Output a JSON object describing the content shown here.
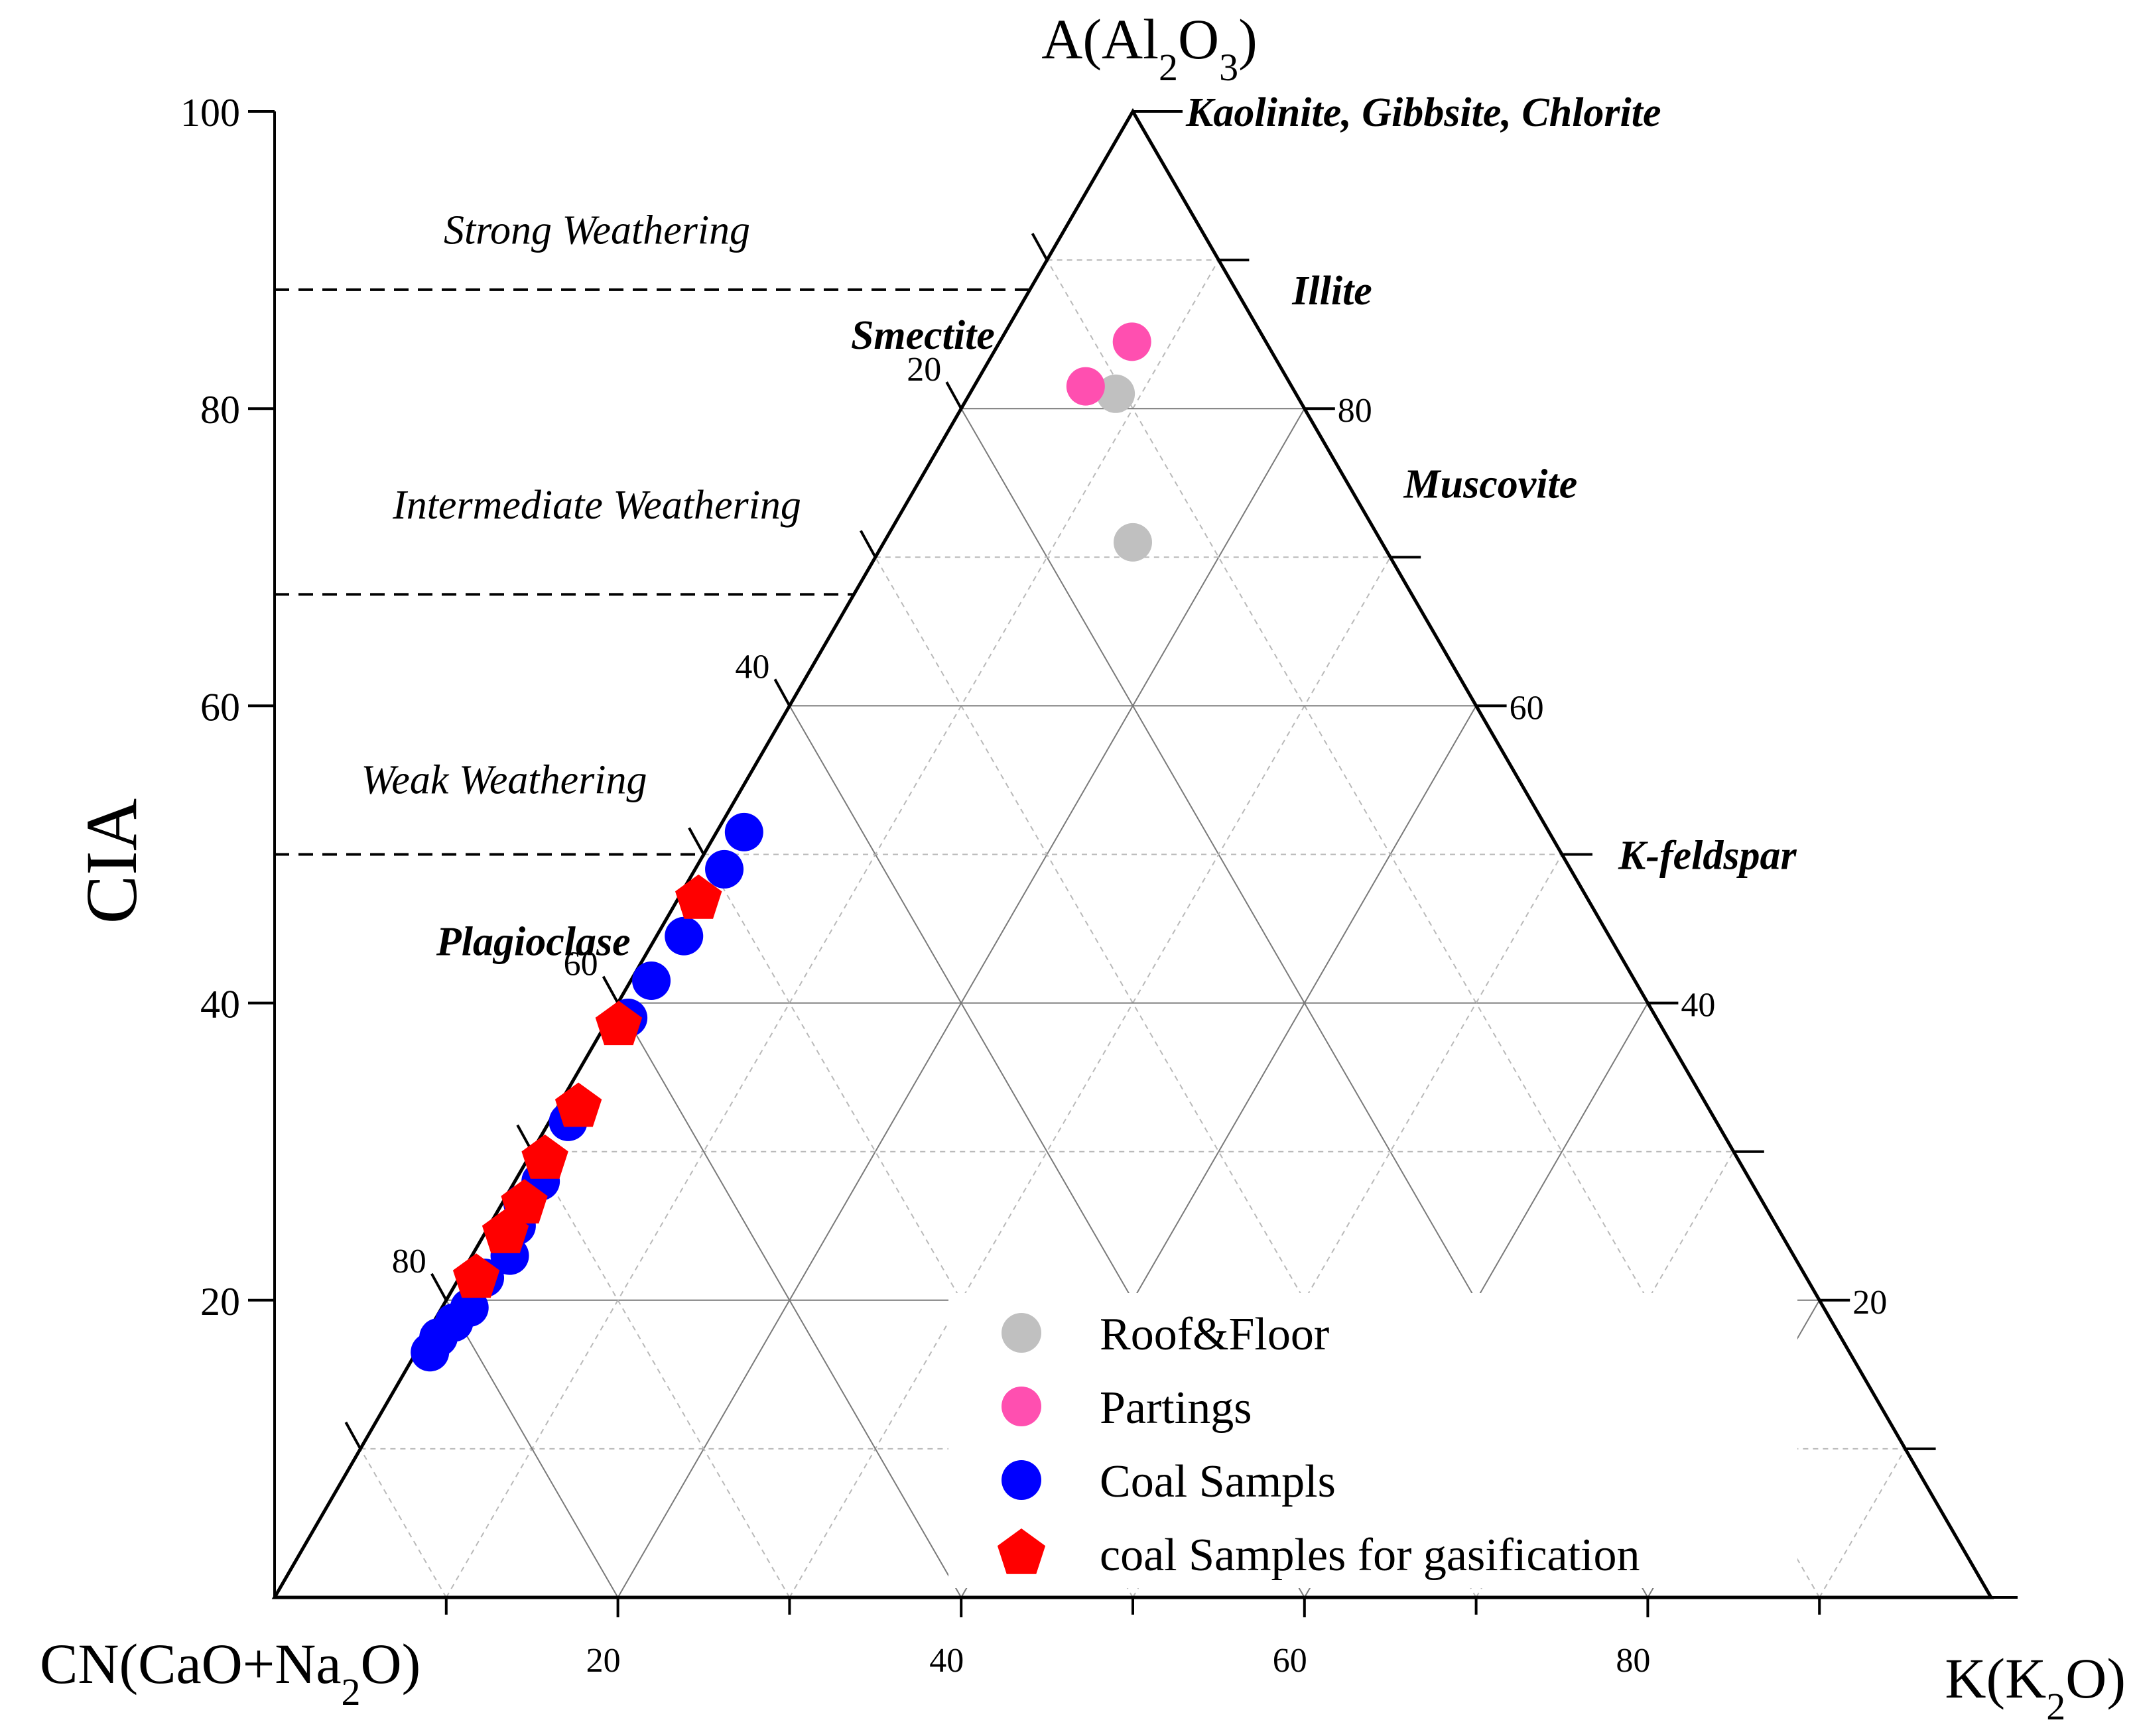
{
  "chart_data": {
    "type": "scatter",
    "subtype": "ternary A-CN-K diagram with CIA scale",
    "vertices": {
      "top": {
        "label": "A(Al",
        "sub1": "2",
        "mid": "O",
        "sub2": "3",
        "end": ")"
      },
      "left": {
        "label": "CN(CaO+Na",
        "sub1": "2",
        "end": "O)"
      },
      "right": {
        "label": "K(K",
        "sub1": "2",
        "end": "O)"
      }
    },
    "ylabel": "CIA",
    "ylim": [
      0,
      100
    ],
    "y_ticks": [
      20,
      40,
      60,
      80,
      100
    ],
    "bottom_ticks": [
      20,
      40,
      60,
      80
    ],
    "left_side_ticks": [
      20,
      40,
      60,
      80
    ],
    "right_side_ticks": [
      20,
      40,
      60,
      80
    ],
    "weathering_zones": [
      {
        "label": "Strong Weathering",
        "cia_text": 92
      },
      {
        "label": "Intermediate Weathering",
        "cia_text": 73.5
      },
      {
        "label": "Weak Weathering",
        "cia_text": 55
      }
    ],
    "zone_boundaries_cia": [
      88,
      67.5,
      50
    ],
    "minerals": [
      {
        "label": "Kaolinite, Gibbsite, Chlorite",
        "side": "right",
        "a": 100
      },
      {
        "label": "Illite",
        "side": "right",
        "a": 88
      },
      {
        "label": "Muscovite",
        "side": "right",
        "a": 75
      },
      {
        "label": "K-feldspar",
        "side": "right",
        "a": 50
      },
      {
        "label": "Smectite",
        "side": "left",
        "a": 85
      },
      {
        "label": "Plagioclase",
        "side": "left",
        "a": 47.5
      }
    ],
    "series": [
      {
        "name": "Roof&Floor",
        "marker": "circle",
        "color": "#c0c0c0",
        "points": [
          {
            "A": 81,
            "K": 8.5
          },
          {
            "A": 71,
            "K": 14.5
          }
        ]
      },
      {
        "name": "Partings",
        "marker": "circle",
        "color": "#ff4fb0",
        "points": [
          {
            "A": 84.5,
            "K": 7.7
          },
          {
            "A": 81.5,
            "K": 6.5
          }
        ]
      },
      {
        "name": "Coal Sampls",
        "marker": "circle",
        "color": "#0000ff",
        "points": [
          {
            "A": 51.5,
            "K": 1.6
          },
          {
            "A": 49,
            "K": 1.7
          },
          {
            "A": 44.5,
            "K": 1.6
          },
          {
            "A": 41.5,
            "K": 1.2
          },
          {
            "A": 39,
            "K": 1.1
          },
          {
            "A": 32,
            "K": 1.1
          },
          {
            "A": 28,
            "K": 1.5
          },
          {
            "A": 26.5,
            "K": 1.2
          },
          {
            "A": 25,
            "K": 1.6
          },
          {
            "A": 23,
            "K": 2.2
          },
          {
            "A": 21.5,
            "K": 1.5
          },
          {
            "A": 19.5,
            "K": 1.6
          },
          {
            "A": 18.5,
            "K": 1.2
          },
          {
            "A": 17.5,
            "K": 0.8
          },
          {
            "A": 16.5,
            "K": 0.8
          }
        ]
      },
      {
        "name": "coal Samples for gasification",
        "marker": "pentagon",
        "color": "#ff0000",
        "points": [
          {
            "A": 47,
            "K": 1.2
          },
          {
            "A": 38.5,
            "K": 0.8
          },
          {
            "A": 33,
            "K": 1.2
          },
          {
            "A": 29.5,
            "K": 1.0
          },
          {
            "A": 26.5,
            "K": 1.3
          },
          {
            "A": 24.5,
            "K": 1.2
          },
          {
            "A": 21.5,
            "K": 1.0
          }
        ]
      }
    ]
  }
}
